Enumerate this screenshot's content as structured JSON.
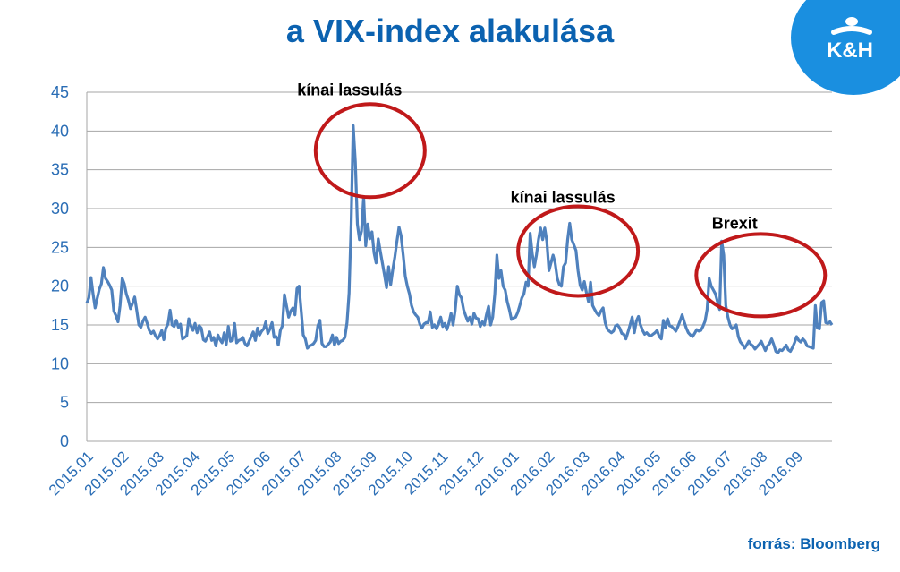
{
  "page": {
    "title": "a VIX-index alakulása",
    "source": "forrás: Bloomberg",
    "logo_text": "K&H"
  },
  "colors": {
    "title": "#0b62b0",
    "line": "#4f81bd",
    "circle": "#c0191a",
    "axis_text": "#2a6db5",
    "logo_bg": "#1a8fe0",
    "grid": "#a6a6a6"
  },
  "chart_data": {
    "type": "line",
    "title": "a VIX-index alakulása",
    "xlabel": "",
    "ylabel": "",
    "ylim": [
      0,
      45
    ],
    "yticks": [
      0,
      5,
      10,
      15,
      20,
      25,
      30,
      35,
      40,
      45
    ],
    "grid": true,
    "x_tick_labels": [
      "2015.01",
      "2015.02",
      "2015.03",
      "2015.04",
      "2015.05",
      "2015.06",
      "2015.07",
      "2015.08",
      "2015.09",
      "2015.10",
      "2015.11",
      "2015.12",
      "2016.01",
      "2016.02",
      "2016.03",
      "2016.04",
      "2016.05",
      "2016.06",
      "2016.07",
      "2016.08",
      "2016.09"
    ],
    "series": [
      {
        "name": "",
        "values": [
          17.8,
          18.5,
          21.1,
          19.0,
          17.2,
          18.4,
          19.6,
          20.3,
          22.4,
          21.0,
          20.6,
          20.1,
          19.5,
          16.8,
          16.2,
          15.4,
          17.5,
          21.0,
          20.3,
          19.0,
          18.2,
          17.1,
          17.8,
          18.6,
          16.9,
          15.0,
          14.7,
          15.5,
          16.0,
          15.2,
          14.3,
          13.9,
          14.2,
          13.6,
          13.2,
          13.6,
          14.3,
          13.1,
          14.6,
          15.1,
          16.9,
          15.0,
          14.8,
          15.6,
          14.7,
          15.1,
          13.2,
          13.4,
          13.6,
          15.8,
          14.9,
          14.3,
          15.2,
          14.0,
          14.9,
          14.6,
          13.1,
          12.9,
          13.5,
          14.1,
          13.0,
          13.4,
          12.3,
          13.7,
          13.1,
          12.7,
          14.0,
          12.5,
          14.8,
          12.9,
          13.0,
          15.2,
          12.7,
          13.0,
          13.1,
          13.4,
          12.6,
          12.3,
          12.9,
          13.5,
          14.1,
          13.0,
          14.6,
          13.7,
          14.2,
          14.5,
          15.4,
          13.9,
          14.5,
          15.3,
          13.4,
          13.5,
          12.4,
          14.3,
          14.9,
          18.9,
          17.4,
          16.0,
          16.8,
          17.2,
          16.3,
          19.7,
          20.0,
          16.8,
          13.7,
          13.2,
          12.0,
          12.3,
          12.4,
          12.6,
          13.0,
          14.9,
          15.6,
          12.6,
          12.2,
          12.2,
          12.5,
          12.8,
          13.7,
          12.4,
          13.4,
          12.6,
          12.9,
          13.0,
          13.4,
          15.3,
          19.1,
          28.0,
          40.7,
          36.0,
          28.0,
          26.0,
          27.1,
          31.5,
          25.2,
          28.0,
          26.1,
          27.0,
          24.3,
          23.0,
          26.1,
          24.5,
          23.0,
          21.5,
          19.8,
          22.5,
          20.2,
          22.1,
          23.8,
          25.8,
          27.6,
          26.5,
          24.0,
          21.3,
          20.0,
          19.0,
          17.5,
          16.7,
          16.3,
          16.0,
          15.1,
          14.6,
          15.1,
          15.3,
          15.3,
          16.7,
          14.7,
          15.0,
          14.5,
          15.1,
          16.0,
          14.8,
          15.2,
          14.4,
          15.3,
          16.5,
          15.0,
          16.9,
          20.0,
          18.9,
          18.5,
          17.0,
          16.2,
          15.5,
          16.0,
          15.1,
          16.5,
          15.9,
          15.8,
          14.8,
          15.4,
          15.0,
          16.3,
          17.4,
          15.0,
          16.0,
          19.0,
          24.0,
          21.0,
          22.0,
          20.0,
          19.5,
          18.0,
          17.0,
          15.7,
          15.9,
          16.0,
          16.6,
          17.5,
          18.5,
          19.0,
          20.5,
          20.0,
          26.8,
          24.2,
          22.5,
          24.0,
          26.0,
          27.5,
          26.0,
          27.5,
          25.8,
          22.0,
          23.0,
          24.0,
          23.0,
          21.0,
          20.2,
          20.0,
          22.5,
          23.0,
          26.0,
          28.1,
          26.0,
          25.3,
          24.6,
          22.0,
          20.1,
          19.5,
          20.6,
          19.2,
          18.0,
          20.5,
          17.5,
          17.0,
          16.5,
          16.2,
          16.8,
          17.2,
          15.3,
          14.5,
          14.2,
          14.0,
          14.2,
          14.9,
          15.0,
          14.6,
          13.9,
          13.8,
          13.2,
          14.1,
          15.0,
          16.0,
          14.0,
          15.5,
          16.1,
          15.0,
          14.3,
          13.8,
          14.0,
          13.7,
          13.6,
          13.8,
          14.0,
          14.3,
          13.5,
          13.2,
          15.6,
          14.6,
          15.8,
          14.9,
          14.8,
          14.5,
          14.2,
          14.8,
          15.5,
          16.3,
          15.4,
          14.6,
          14.0,
          13.7,
          13.5,
          13.9,
          14.4,
          14.2,
          14.3,
          14.8,
          15.5,
          17.0,
          21.0,
          20.0,
          19.5,
          19.0,
          18.0,
          17.0,
          25.8,
          24.0,
          17.5,
          16.0,
          15.0,
          14.5,
          14.7,
          15.0,
          13.5,
          12.8,
          12.5,
          12.0,
          12.4,
          12.9,
          12.5,
          12.3,
          11.9,
          12.2,
          12.5,
          12.9,
          12.3,
          11.7,
          12.3,
          12.6,
          13.2,
          12.5,
          11.6,
          11.4,
          11.8,
          11.7,
          12.0,
          12.4,
          11.8,
          11.6,
          12.1,
          12.7,
          13.5,
          13.0,
          12.8,
          13.2,
          12.9,
          12.3,
          12.2,
          12.1,
          12.0,
          17.5,
          14.6,
          14.5,
          17.9,
          18.1,
          15.3,
          15.2,
          15.4,
          15.0
        ]
      }
    ],
    "annotations": [
      {
        "text": "kínai lassulás",
        "x_index": 131,
        "y": 40.7
      },
      {
        "text": "kínai lassulás",
        "x_index": 239,
        "y": 28.1
      },
      {
        "text": "Brexit",
        "x_index": 313,
        "y": 25.8
      }
    ]
  }
}
